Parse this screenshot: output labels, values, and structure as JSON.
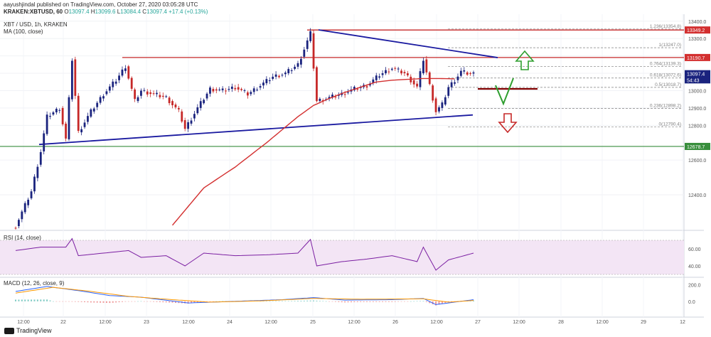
{
  "header": {
    "published": "aayushjindal published on TradingView.com, October 27, 2020 03:05:28 UTC",
    "symbol": "KRAKEN:XBTUSD, 60",
    "ohlc_o_label": "O",
    "ohlc_o": "13097.4",
    "ohlc_h_label": "H",
    "ohlc_h": "13099.6",
    "ohlc_l_label": "L",
    "ohlc_l": "13084.4",
    "ohlc_c_label": "C",
    "ohlc_c": "13097.4",
    "change": "+17.4 (+0.13%)",
    "pair_line": "XBT / USD, 1h, KRAKEN",
    "ma_line": "MA (100, close)"
  },
  "footer": {
    "brand": "TradingView"
  },
  "colors": {
    "up": "#1a237e",
    "down": "#c62828",
    "ma": "#d32f2f",
    "trend": "#1a1aa0",
    "support": "#388e3c",
    "fib": "#808080",
    "rsi": "#7b1fa2",
    "macd": "#2962ff",
    "signal": "#ff9800"
  },
  "chart_data": [
    {
      "type": "candlestick",
      "title": "XBT / USD, 1h, KRAKEN",
      "ylim": [
        12220,
        13440
      ],
      "y_ticks": [
        12400,
        12600,
        12800,
        12900,
        13000,
        13100,
        13200,
        13300,
        13400
      ],
      "x_ticks": [
        "12:00",
        "22",
        "12:00",
        "23",
        "12:00",
        "24",
        "12:00",
        "25",
        "12:00",
        "26",
        "12:00",
        "27",
        "12:00",
        "28",
        "12:00",
        "29",
        "12"
      ],
      "price_badges": [
        {
          "value": 13349.2,
          "label": "13349.2",
          "color": "#d32f2f"
        },
        {
          "value": 13190.7,
          "label": "13190.7",
          "color": "#d32f2f"
        },
        {
          "value": 13097.4,
          "label": "13097.4",
          "color": "#1a237e"
        },
        {
          "value": 13062,
          "label": "54:43",
          "color": "#1a237e"
        },
        {
          "value": 12678.7,
          "label": "12678.7",
          "color": "#388e3c"
        }
      ],
      "fib_levels": [
        {
          "value": 13354.8,
          "label": "1.236(13354.8)"
        },
        {
          "value": 13247.0,
          "label": "1(13247.0)"
        },
        {
          "value": 13139.3,
          "label": "0.764(13139.3)"
        },
        {
          "value": 13072.6,
          "label": "0.618(13072.6)"
        },
        {
          "value": 13018.7,
          "label": "0.5(13018.7)"
        },
        {
          "value": 12898.2,
          "label": "0.236(12898.2)"
        },
        {
          "value": 12790.4,
          "label": "0(12790.4)"
        }
      ],
      "resistance_levels": [
        13349.2,
        13190.7
      ],
      "support_level": 12678.7,
      "annotation_level": 13010,
      "series": [
        {
          "name": "XBTUSD",
          "anchors": [
            [
              0,
              12220
            ],
            [
              5,
              12420
            ],
            [
              8,
              12650
            ],
            [
              10,
              12850
            ],
            [
              14,
              12900
            ],
            [
              16,
              12720
            ],
            [
              18,
              13180
            ],
            [
              20,
              12760
            ],
            [
              24,
              12880
            ],
            [
              28,
              12980
            ],
            [
              32,
              13060
            ],
            [
              35,
              13140
            ],
            [
              38,
              12940
            ],
            [
              40,
              13000
            ],
            [
              44,
              12980
            ],
            [
              48,
              12960
            ],
            [
              52,
              12880
            ],
            [
              54,
              12780
            ],
            [
              58,
              12900
            ],
            [
              62,
              13010
            ],
            [
              66,
              13000
            ],
            [
              70,
              13020
            ],
            [
              74,
              12980
            ],
            [
              78,
              13030
            ],
            [
              82,
              13080
            ],
            [
              86,
              13100
            ],
            [
              90,
              13150
            ],
            [
              94,
              13330
            ],
            [
              96,
              12940
            ],
            [
              100,
              12960
            ],
            [
              104,
              12980
            ],
            [
              108,
              13010
            ],
            [
              112,
              13030
            ],
            [
              116,
              13090
            ],
            [
              120,
              13130
            ],
            [
              124,
              13100
            ],
            [
              128,
              13020
            ],
            [
              130,
              13180
            ],
            [
              132,
              13030
            ],
            [
              134,
              12880
            ],
            [
              136,
              12920
            ],
            [
              138,
              13020
            ],
            [
              140,
              13060
            ],
            [
              142,
              13110
            ],
            [
              144,
              13100
            ],
            [
              146,
              13097
            ]
          ]
        },
        {
          "name": "MA (100, close)",
          "anchors": [
            [
              50,
              12225
            ],
            [
              60,
              12440
            ],
            [
              70,
              12560
            ],
            [
              80,
              12700
            ],
            [
              90,
              12850
            ],
            [
              95,
              12915
            ],
            [
              100,
              12955
            ],
            [
              105,
              12990
            ],
            [
              110,
              13020
            ],
            [
              115,
              13050
            ],
            [
              120,
              13060
            ],
            [
              125,
              13065
            ],
            [
              130,
              13070
            ],
            [
              135,
              13070
            ],
            [
              140,
              13068
            ]
          ]
        }
      ]
    },
    {
      "type": "line",
      "title": "RSI (14, close)",
      "ylim": [
        30,
        75
      ],
      "y_ticks": [
        40,
        60
      ],
      "series": [
        {
          "name": "RSI",
          "anchors": [
            [
              0,
              58
            ],
            [
              8,
              62
            ],
            [
              16,
              62
            ],
            [
              18,
              72
            ],
            [
              20,
              52
            ],
            [
              28,
              55
            ],
            [
              36,
              58
            ],
            [
              40,
              50
            ],
            [
              48,
              52
            ],
            [
              54,
              40
            ],
            [
              60,
              55
            ],
            [
              70,
              52
            ],
            [
              80,
              53
            ],
            [
              90,
              55
            ],
            [
              94,
              71
            ],
            [
              96,
              40
            ],
            [
              104,
              45
            ],
            [
              112,
              48
            ],
            [
              120,
              52
            ],
            [
              128,
              45
            ],
            [
              130,
              62
            ],
            [
              134,
              35
            ],
            [
              138,
              47
            ],
            [
              146,
              55
            ]
          ]
        }
      ]
    },
    {
      "type": "line",
      "title": "MACD (12, 26, close, 9)",
      "ylim": [
        -140,
        240
      ],
      "y_ticks": [
        200.0,
        0.0
      ],
      "series": [
        {
          "name": "MACD",
          "anchors": [
            [
              0,
              120
            ],
            [
              10,
              180
            ],
            [
              20,
              130
            ],
            [
              30,
              70
            ],
            [
              40,
              50
            ],
            [
              55,
              -20
            ],
            [
              70,
              0
            ],
            [
              85,
              20
            ],
            [
              95,
              45
            ],
            [
              105,
              15
            ],
            [
              120,
              20
            ],
            [
              130,
              35
            ],
            [
              134,
              -40
            ],
            [
              146,
              20
            ]
          ]
        },
        {
          "name": "Signal",
          "anchors": [
            [
              0,
              100
            ],
            [
              12,
              170
            ],
            [
              24,
              120
            ],
            [
              36,
              60
            ],
            [
              50,
              20
            ],
            [
              62,
              -10
            ],
            [
              78,
              5
            ],
            [
              95,
              35
            ],
            [
              110,
              25
            ],
            [
              130,
              30
            ],
            [
              138,
              -10
            ],
            [
              146,
              10
            ]
          ]
        }
      ]
    }
  ]
}
